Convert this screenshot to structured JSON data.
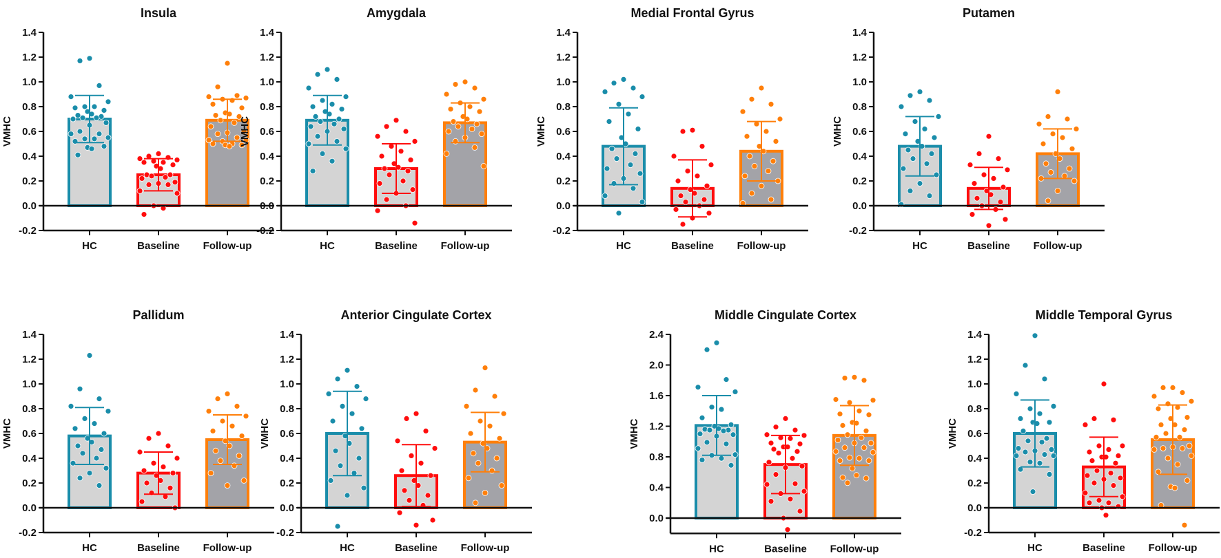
{
  "chart_data": [
    {
      "type": "bar",
      "title": "Insula",
      "ylabel": "VMHC",
      "ylim": [
        -0.2,
        1.4
      ],
      "yticks": [
        "-0.2",
        "0.0",
        "0.2",
        "0.4",
        "0.6",
        "0.8",
        "1.0",
        "1.2",
        "1.4"
      ],
      "categories": [
        "HC",
        "Baseline",
        "Follow-up"
      ],
      "series": [
        {
          "name": "HC",
          "mean": 0.7,
          "sd": 0.19,
          "points": [
            1.19,
            1.17,
            0.97,
            0.88,
            0.84,
            0.8,
            0.8,
            0.79,
            0.77,
            0.76,
            0.74,
            0.73,
            0.72,
            0.71,
            0.71,
            0.7,
            0.67,
            0.65,
            0.6,
            0.58,
            0.58,
            0.55,
            0.54,
            0.54,
            0.52,
            0.48,
            0.47,
            0.46,
            0.41
          ]
        },
        {
          "name": "Baseline",
          "mean": 0.25,
          "sd": 0.13,
          "points": [
            0.42,
            0.4,
            0.39,
            0.38,
            0.37,
            0.36,
            0.35,
            0.35,
            0.33,
            0.32,
            0.3,
            0.25,
            0.25,
            0.24,
            0.23,
            0.22,
            0.19,
            0.18,
            0.17,
            0.17,
            0.12,
            0.1,
            0.0,
            -0.02,
            -0.07
          ]
        },
        {
          "name": "Follow-up",
          "mean": 0.69,
          "sd": 0.17,
          "points": [
            1.15,
            0.96,
            0.89,
            0.88,
            0.87,
            0.86,
            0.85,
            0.82,
            0.79,
            0.75,
            0.74,
            0.73,
            0.72,
            0.69,
            0.67,
            0.64,
            0.6,
            0.59,
            0.58,
            0.55,
            0.53,
            0.53,
            0.52,
            0.5,
            0.5,
            0.49,
            0.49,
            0.48
          ]
        }
      ]
    },
    {
      "type": "bar",
      "title": "Amygdala",
      "ylabel": "VMHC",
      "ylim": [
        -0.2,
        1.4
      ],
      "yticks": [
        "-0.2",
        "0.0",
        "0.2",
        "0.4",
        "0.6",
        "0.8",
        "1.0",
        "1.2",
        "1.4"
      ],
      "categories": [
        "HC",
        "Baseline",
        "Follow-up"
      ],
      "series": [
        {
          "name": "HC",
          "mean": 0.69,
          "sd": 0.2,
          "points": [
            1.1,
            1.06,
            1.02,
            0.95,
            0.88,
            0.85,
            0.82,
            0.8,
            0.78,
            0.76,
            0.74,
            0.72,
            0.7,
            0.68,
            0.66,
            0.64,
            0.62,
            0.6,
            0.56,
            0.52,
            0.5,
            0.46,
            0.42,
            0.36,
            0.28
          ]
        },
        {
          "name": "Baseline",
          "mean": 0.3,
          "sd": 0.2,
          "points": [
            0.69,
            0.64,
            0.6,
            0.56,
            0.52,
            0.48,
            0.44,
            0.4,
            0.37,
            0.34,
            0.31,
            0.3,
            0.28,
            0.25,
            0.2,
            0.18,
            0.13,
            0.1,
            0.05,
            0.0,
            -0.04,
            -0.14
          ]
        },
        {
          "name": "Follow-up",
          "mean": 0.67,
          "sd": 0.16,
          "points": [
            1.0,
            0.98,
            0.95,
            0.9,
            0.86,
            0.83,
            0.8,
            0.78,
            0.76,
            0.72,
            0.7,
            0.68,
            0.66,
            0.64,
            0.62,
            0.6,
            0.58,
            0.55,
            0.52,
            0.47,
            0.42,
            0.32
          ]
        }
      ]
    },
    {
      "type": "bar",
      "title": "Medial Frontal Gyrus",
      "ylabel": "VMHC",
      "ylim": [
        -0.2,
        1.4
      ],
      "yticks": [
        "-0.2",
        "0.0",
        "0.2",
        "0.4",
        "0.6",
        "0.8",
        "1.0",
        "1.2",
        "1.4"
      ],
      "categories": [
        "HC",
        "Baseline",
        "Follow-up"
      ],
      "series": [
        {
          "name": "HC",
          "mean": 0.48,
          "sd": 0.31,
          "points": [
            1.02,
            0.99,
            0.95,
            0.92,
            0.88,
            0.82,
            0.74,
            0.68,
            0.62,
            0.55,
            0.5,
            0.46,
            0.42,
            0.38,
            0.33,
            0.3,
            0.26,
            0.22,
            0.18,
            0.14,
            0.08,
            0.03,
            -0.06
          ]
        },
        {
          "name": "Baseline",
          "mean": 0.14,
          "sd": 0.23,
          "points": [
            0.61,
            0.6,
            0.48,
            0.4,
            0.33,
            0.28,
            0.24,
            0.2,
            0.16,
            0.13,
            0.1,
            0.08,
            0.05,
            0.03,
            0.0,
            -0.03,
            -0.06,
            -0.1,
            -0.15
          ]
        },
        {
          "name": "Follow-up",
          "mean": 0.44,
          "sd": 0.24,
          "points": [
            0.95,
            0.86,
            0.82,
            0.76,
            0.7,
            0.66,
            0.6,
            0.56,
            0.52,
            0.48,
            0.44,
            0.4,
            0.36,
            0.32,
            0.28,
            0.24,
            0.2,
            0.16,
            0.1,
            0.05,
            0.02
          ]
        }
      ]
    },
    {
      "type": "bar",
      "title": "Putamen",
      "ylabel": "VMHC",
      "ylim": [
        -0.2,
        1.4
      ],
      "yticks": [
        "-0.2",
        "0.0",
        "0.2",
        "0.4",
        "0.6",
        "0.8",
        "1.0",
        "1.2",
        "1.4"
      ],
      "categories": [
        "HC",
        "Baseline",
        "Follow-up"
      ],
      "series": [
        {
          "name": "HC",
          "mean": 0.48,
          "sd": 0.24,
          "points": [
            0.92,
            0.89,
            0.85,
            0.8,
            0.72,
            0.68,
            0.62,
            0.58,
            0.55,
            0.52,
            0.48,
            0.45,
            0.42,
            0.38,
            0.34,
            0.3,
            0.25,
            0.18,
            0.12,
            0.08,
            0.01
          ]
        },
        {
          "name": "Baseline",
          "mean": 0.14,
          "sd": 0.17,
          "points": [
            0.56,
            0.42,
            0.38,
            0.33,
            0.29,
            0.25,
            0.22,
            0.18,
            0.15,
            0.12,
            0.09,
            0.06,
            0.03,
            0.0,
            -0.03,
            -0.07,
            -0.11,
            -0.16
          ]
        },
        {
          "name": "Follow-up",
          "mean": 0.42,
          "sd": 0.2,
          "points": [
            0.92,
            0.72,
            0.7,
            0.66,
            0.62,
            0.58,
            0.55,
            0.5,
            0.46,
            0.42,
            0.38,
            0.34,
            0.3,
            0.27,
            0.24,
            0.22,
            0.2,
            0.12,
            0.04
          ]
        }
      ]
    },
    {
      "type": "bar",
      "title": "Pallidum",
      "ylabel": "VMHC",
      "ylim": [
        -0.2,
        1.4
      ],
      "yticks": [
        "-0.2",
        "0.0",
        "0.2",
        "0.4",
        "0.6",
        "0.8",
        "1.0",
        "1.2",
        "1.4"
      ],
      "categories": [
        "HC",
        "Baseline",
        "Follow-up"
      ],
      "series": [
        {
          "name": "HC",
          "mean": 0.58,
          "sd": 0.23,
          "points": [
            1.23,
            0.96,
            0.88,
            0.82,
            0.78,
            0.72,
            0.68,
            0.64,
            0.6,
            0.56,
            0.53,
            0.5,
            0.47,
            0.44,
            0.4,
            0.36,
            0.32,
            0.28,
            0.24,
            0.18
          ]
        },
        {
          "name": "Baseline",
          "mean": 0.28,
          "sd": 0.17,
          "points": [
            0.6,
            0.56,
            0.5,
            0.45,
            0.4,
            0.36,
            0.33,
            0.3,
            0.28,
            0.26,
            0.22,
            0.2,
            0.16,
            0.12,
            0.09,
            0.05,
            0.0
          ]
        },
        {
          "name": "Follow-up",
          "mean": 0.55,
          "sd": 0.2,
          "points": [
            0.92,
            0.88,
            0.82,
            0.78,
            0.74,
            0.7,
            0.66,
            0.62,
            0.58,
            0.54,
            0.5,
            0.46,
            0.42,
            0.38,
            0.34,
            0.28,
            0.22,
            0.18
          ]
        }
      ]
    },
    {
      "type": "bar",
      "title": "Anterior Cingulate Cortex",
      "ylabel": "VMHC",
      "ylim": [
        -0.2,
        1.4
      ],
      "yticks": [
        "-0.2",
        "0.0",
        "0.2",
        "0.4",
        "0.6",
        "0.8",
        "1.0",
        "1.2",
        "1.4"
      ],
      "categories": [
        "HC",
        "Baseline",
        "Follow-up"
      ],
      "series": [
        {
          "name": "HC",
          "mean": 0.6,
          "sd": 0.34,
          "points": [
            1.11,
            1.04,
            0.98,
            0.92,
            0.88,
            0.82,
            0.76,
            0.7,
            0.64,
            0.58,
            0.52,
            0.46,
            0.4,
            0.34,
            0.28,
            0.22,
            0.16,
            0.1,
            -0.15
          ]
        },
        {
          "name": "Baseline",
          "mean": 0.26,
          "sd": 0.25,
          "points": [
            0.76,
            0.72,
            0.62,
            0.54,
            0.48,
            0.42,
            0.36,
            0.3,
            0.26,
            0.22,
            0.18,
            0.14,
            0.1,
            0.06,
            0.02,
            -0.04,
            -0.1,
            -0.14
          ]
        },
        {
          "name": "Follow-up",
          "mean": 0.53,
          "sd": 0.24,
          "points": [
            1.13,
            0.95,
            0.9,
            0.82,
            0.76,
            0.7,
            0.66,
            0.6,
            0.56,
            0.52,
            0.48,
            0.44,
            0.4,
            0.36,
            0.3,
            0.24,
            0.18,
            0.12,
            0.04
          ]
        }
      ]
    },
    {
      "type": "bar",
      "title": "Middle  Cingulate Cortex",
      "ylabel": "VMHC",
      "ylim": [
        -0.2,
        2.4
      ],
      "yticks": [
        "0.0",
        "0.4",
        "0.8",
        "1.2",
        "1.6",
        "2.0",
        "2.4"
      ],
      "categories": [
        "HC",
        "Baseline",
        "Follow-up"
      ],
      "series": [
        {
          "name": "HC",
          "mean": 1.21,
          "sd": 0.39,
          "points": [
            2.29,
            2.2,
            1.81,
            1.71,
            1.65,
            1.45,
            1.42,
            1.31,
            1.22,
            1.2,
            1.17,
            1.16,
            1.15,
            1.15,
            1.14,
            1.1,
            1.09,
            1.07,
            0.99,
            0.97,
            0.91,
            0.83,
            0.82,
            0.78,
            0.76,
            0.69
          ]
        },
        {
          "name": "Baseline",
          "mean": 0.7,
          "sd": 0.38,
          "points": [
            1.3,
            1.19,
            1.15,
            1.09,
            1.08,
            1.05,
            1.04,
            0.98,
            0.97,
            0.93,
            0.93,
            0.9,
            0.87,
            0.85,
            0.78,
            0.73,
            0.68,
            0.66,
            0.57,
            0.45,
            0.44,
            0.35,
            0.32,
            0.25,
            0.22,
            0.09,
            0.0,
            -0.15
          ]
        },
        {
          "name": "Follow-up",
          "mean": 1.08,
          "sd": 0.39,
          "points": [
            1.84,
            1.83,
            1.8,
            1.55,
            1.54,
            1.51,
            1.4,
            1.36,
            1.35,
            1.25,
            1.24,
            1.21,
            1.14,
            1.09,
            1.05,
            1.02,
            0.98,
            0.98,
            0.92,
            0.92,
            0.87,
            0.86,
            0.79,
            0.78,
            0.75,
            0.75,
            0.65,
            0.56,
            0.53,
            0.52,
            0.46
          ]
        }
      ]
    },
    {
      "type": "bar",
      "title": "Middle  Temporal Gyrus",
      "ylabel": "VMHC",
      "ylim": [
        -0.2,
        1.4
      ],
      "yticks": [
        "-0.2",
        "0.0",
        "0.2",
        "0.4",
        "0.6",
        "0.8",
        "1.0",
        "1.2",
        "1.4"
      ],
      "categories": [
        "HC",
        "Baseline",
        "Follow-up"
      ],
      "series": [
        {
          "name": "HC",
          "mean": 0.6,
          "sd": 0.27,
          "points": [
            1.39,
            1.15,
            1.04,
            0.92,
            0.82,
            0.8,
            0.76,
            0.72,
            0.69,
            0.69,
            0.68,
            0.62,
            0.56,
            0.54,
            0.53,
            0.48,
            0.47,
            0.46,
            0.45,
            0.43,
            0.42,
            0.42,
            0.37,
            0.36,
            0.31,
            0.27,
            0.13
          ]
        },
        {
          "name": "Baseline",
          "mean": 0.33,
          "sd": 0.24,
          "points": [
            1.0,
            0.72,
            0.71,
            0.67,
            0.5,
            0.5,
            0.47,
            0.45,
            0.42,
            0.41,
            0.41,
            0.38,
            0.36,
            0.3,
            0.28,
            0.26,
            0.24,
            0.23,
            0.2,
            0.18,
            0.12,
            0.09,
            0.06,
            0.04,
            0.04,
            0.01,
            0.0,
            -0.06
          ]
        },
        {
          "name": "Follow-up",
          "mean": 0.55,
          "sd": 0.28,
          "points": [
            0.97,
            0.97,
            0.93,
            0.9,
            0.86,
            0.84,
            0.81,
            0.8,
            0.73,
            0.72,
            0.67,
            0.67,
            0.63,
            0.6,
            0.57,
            0.57,
            0.5,
            0.49,
            0.48,
            0.48,
            0.47,
            0.42,
            0.4,
            0.35,
            0.29,
            0.22,
            0.17,
            0.16,
            0.02,
            -0.14
          ]
        }
      ]
    }
  ],
  "colors": {
    "HC": {
      "stroke": "#1a8daa",
      "fill": "#d4d4d4"
    },
    "Baseline": {
      "stroke": "#ff0d0d",
      "fill": "#d4d4d4"
    },
    "Follow-up": {
      "stroke": "#ff7f0a",
      "fill": "#a3a3a8"
    }
  }
}
